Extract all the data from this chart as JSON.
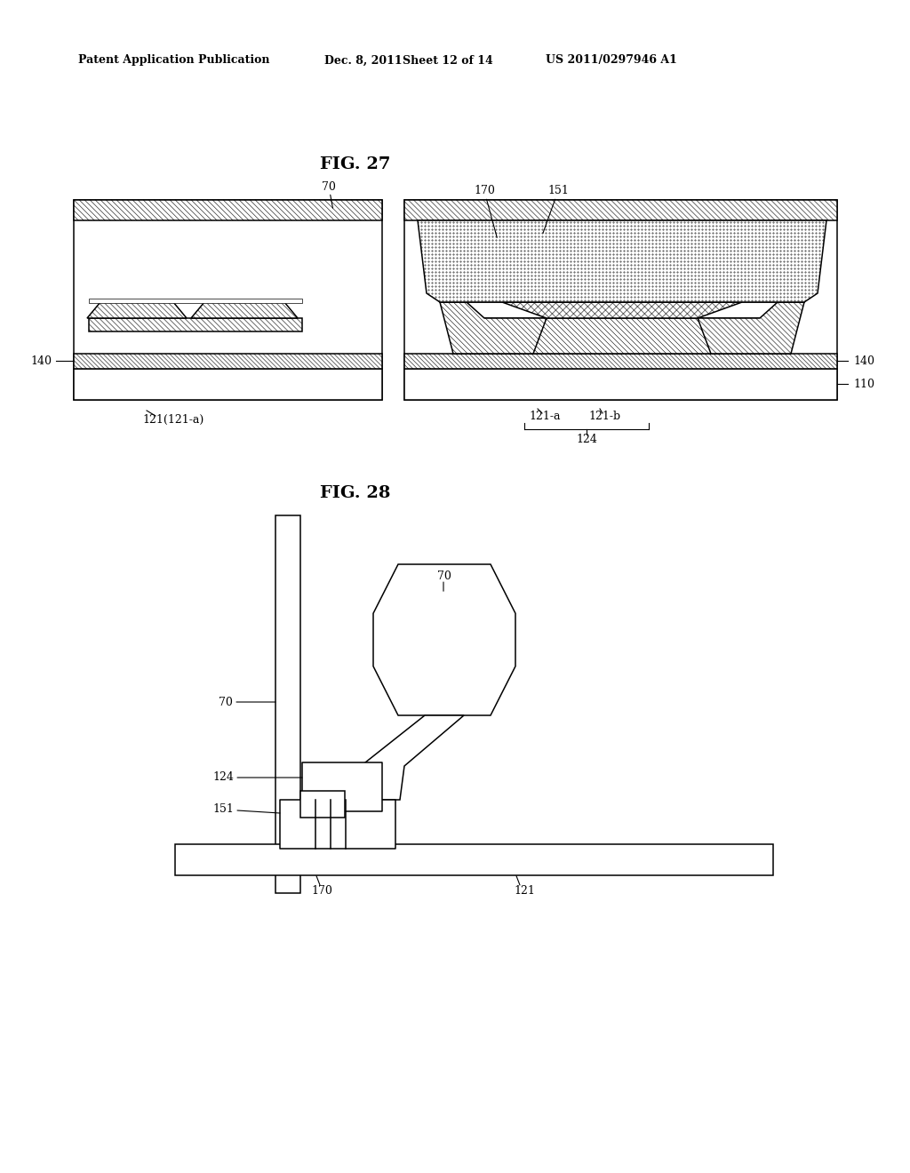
{
  "bg_color": "#ffffff",
  "line_color": "#000000",
  "header_left": "Patent Application Publication",
  "header_mid1": "Dec. 8, 2011",
  "header_mid2": "Sheet 12 of 14",
  "header_right": "US 2011/0297946 A1",
  "fig27_title": "FIG. 27",
  "fig28_title": "FIG. 28"
}
